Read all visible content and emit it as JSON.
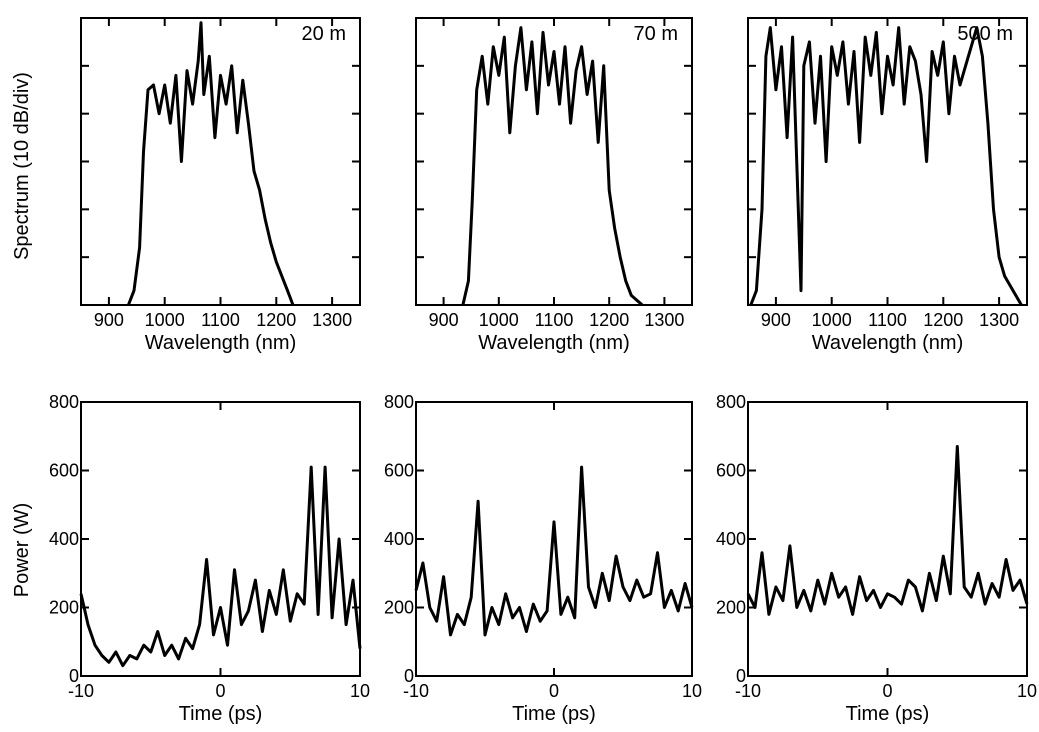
{
  "figure": {
    "top_ylabel": "Spectrum (10 dB/div)",
    "bottom_ylabel": "Power (W)"
  },
  "chart_data": [
    {
      "type": "line",
      "panel": "spectrum-20m",
      "annotation": "20 m",
      "xlabel": "Wavelength (nm)",
      "ylabel": "Spectrum (10 dB/div)",
      "xlim": [
        850,
        1350
      ],
      "ylim": [
        -60,
        0
      ],
      "x_ticks": [
        900,
        1000,
        1100,
        1200,
        1300
      ],
      "series": [
        {
          "x": [
            935,
            945,
            955,
            962,
            970,
            980,
            990,
            1000,
            1010,
            1020,
            1030,
            1040,
            1050,
            1060,
            1065,
            1070,
            1080,
            1090,
            1100,
            1110,
            1120,
            1130,
            1140,
            1150,
            1160,
            1170,
            1180,
            1190,
            1200,
            1210,
            1220,
            1230
          ],
          "y": [
            -60,
            -57,
            -48,
            -28,
            -15,
            -14,
            -20,
            -14,
            -22,
            -12,
            -30,
            -11,
            -18,
            -9,
            -1,
            -16,
            -8,
            -25,
            -12,
            -18,
            -10,
            -24,
            -13,
            -22,
            -32,
            -36,
            -42,
            -47,
            -51,
            -54,
            -57,
            -60
          ]
        }
      ]
    },
    {
      "type": "line",
      "panel": "spectrum-70m",
      "annotation": "70 m",
      "xlabel": "Wavelength (nm)",
      "ylabel": "",
      "xlim": [
        850,
        1350
      ],
      "ylim": [
        -60,
        0
      ],
      "x_ticks": [
        900,
        1000,
        1100,
        1200,
        1300
      ],
      "series": [
        {
          "x": [
            935,
            945,
            952,
            960,
            970,
            980,
            990,
            1000,
            1010,
            1020,
            1030,
            1040,
            1050,
            1060,
            1070,
            1080,
            1090,
            1100,
            1110,
            1120,
            1130,
            1140,
            1150,
            1160,
            1170,
            1180,
            1190,
            1200,
            1210,
            1220,
            1230,
            1240,
            1250,
            1260
          ],
          "y": [
            -60,
            -55,
            -38,
            -15,
            -8,
            -18,
            -6,
            -12,
            -4,
            -24,
            -10,
            -2,
            -15,
            -5,
            -20,
            -3,
            -14,
            -7,
            -18,
            -6,
            -22,
            -11,
            -6,
            -16,
            -9,
            -26,
            -10,
            -36,
            -44,
            -50,
            -55,
            -58,
            -59,
            -60
          ]
        }
      ]
    },
    {
      "type": "line",
      "panel": "spectrum-500m",
      "annotation": "500 m",
      "xlabel": "Wavelength (nm)",
      "ylabel": "",
      "xlim": [
        850,
        1350
      ],
      "ylim": [
        -60,
        0
      ],
      "x_ticks": [
        900,
        1000,
        1100,
        1200,
        1300
      ],
      "series": [
        {
          "x": [
            855,
            865,
            875,
            882,
            890,
            900,
            910,
            920,
            930,
            945,
            950,
            960,
            970,
            980,
            990,
            1000,
            1010,
            1020,
            1030,
            1040,
            1050,
            1060,
            1070,
            1080,
            1090,
            1100,
            1110,
            1120,
            1130,
            1140,
            1150,
            1160,
            1170,
            1180,
            1190,
            1200,
            1210,
            1220,
            1230,
            1240,
            1250,
            1260,
            1270,
            1280,
            1290,
            1300,
            1310,
            1320,
            1330,
            1340
          ],
          "y": [
            -60,
            -57,
            -40,
            -8,
            -2,
            -15,
            -6,
            -25,
            -4,
            -57,
            -10,
            -5,
            -22,
            -8,
            -30,
            -6,
            -12,
            -5,
            -18,
            -7,
            -26,
            -4,
            -12,
            -3,
            -20,
            -8,
            -14,
            -2,
            -18,
            -6,
            -9,
            -16,
            -30,
            -7,
            -12,
            -5,
            -20,
            -8,
            -14,
            -10,
            -6,
            -2,
            -8,
            -22,
            -40,
            -50,
            -54,
            -56,
            -58,
            -60
          ]
        }
      ]
    },
    {
      "type": "line",
      "panel": "power-20m",
      "xlabel": "Time (ps)",
      "ylabel": "Power (W)",
      "xlim": [
        -10,
        10
      ],
      "ylim": [
        0,
        800
      ],
      "x_ticks": [
        -10,
        0,
        10
      ],
      "y_ticks": [
        0,
        200,
        400,
        600,
        800
      ],
      "series": [
        {
          "x": [
            -10,
            -9.5,
            -9,
            -8.5,
            -8,
            -7.5,
            -7,
            -6.5,
            -6,
            -5.5,
            -5,
            -4.5,
            -4,
            -3.5,
            -3,
            -2.5,
            -2,
            -1.5,
            -1,
            -0.5,
            0,
            0.5,
            1,
            1.5,
            2,
            2.5,
            3,
            3.5,
            4,
            4.5,
            5,
            5.5,
            6,
            6.5,
            7,
            7.5,
            8,
            8.5,
            9,
            9.5,
            10
          ],
          "y": [
            240,
            150,
            90,
            60,
            40,
            70,
            30,
            60,
            50,
            90,
            70,
            130,
            60,
            90,
            50,
            110,
            80,
            150,
            340,
            120,
            200,
            90,
            310,
            150,
            190,
            280,
            130,
            250,
            180,
            310,
            160,
            240,
            210,
            610,
            180,
            610,
            170,
            400,
            150,
            280,
            80
          ]
        }
      ]
    },
    {
      "type": "line",
      "panel": "power-70m",
      "xlabel": "Time (ps)",
      "ylabel": "",
      "xlim": [
        -10,
        10
      ],
      "ylim": [
        0,
        800
      ],
      "x_ticks": [
        -10,
        0,
        10
      ],
      "y_ticks": [
        0,
        200,
        400,
        600,
        800
      ],
      "series": [
        {
          "x": [
            -10,
            -9.5,
            -9,
            -8.5,
            -8,
            -7.5,
            -7,
            -6.5,
            -6,
            -5.5,
            -5,
            -4.5,
            -4,
            -3.5,
            -3,
            -2.5,
            -2,
            -1.5,
            -1,
            -0.5,
            0,
            0.5,
            1,
            1.5,
            2,
            2.5,
            3,
            3.5,
            4,
            4.5,
            5,
            5.5,
            6,
            6.5,
            7,
            7.5,
            8,
            8.5,
            9,
            9.5,
            10
          ],
          "y": [
            250,
            330,
            200,
            160,
            290,
            120,
            180,
            150,
            230,
            510,
            120,
            200,
            150,
            240,
            170,
            200,
            130,
            210,
            160,
            190,
            450,
            180,
            230,
            170,
            610,
            260,
            200,
            300,
            220,
            350,
            260,
            220,
            280,
            230,
            240,
            360,
            200,
            250,
            190,
            270,
            200
          ]
        }
      ]
    },
    {
      "type": "line",
      "panel": "power-500m",
      "xlabel": "Time (ps)",
      "ylabel": "",
      "xlim": [
        -10,
        10
      ],
      "ylim": [
        0,
        800
      ],
      "x_ticks": [
        -10,
        0,
        10
      ],
      "y_ticks": [
        0,
        200,
        400,
        600,
        800
      ],
      "series": [
        {
          "x": [
            -10,
            -9.5,
            -9,
            -8.5,
            -8,
            -7.5,
            -7,
            -6.5,
            -6,
            -5.5,
            -5,
            -4.5,
            -4,
            -3.5,
            -3,
            -2.5,
            -2,
            -1.5,
            -1,
            -0.5,
            0,
            0.5,
            1,
            1.5,
            2,
            2.5,
            3,
            3.5,
            4,
            4.5,
            5,
            5.5,
            6,
            6.5,
            7,
            7.5,
            8,
            8.5,
            9,
            9.5,
            10
          ],
          "y": [
            240,
            200,
            360,
            180,
            260,
            220,
            380,
            200,
            250,
            190,
            280,
            210,
            300,
            230,
            260,
            180,
            290,
            220,
            250,
            200,
            240,
            230,
            210,
            280,
            260,
            190,
            300,
            220,
            350,
            240,
            670,
            260,
            230,
            300,
            210,
            270,
            230,
            340,
            250,
            280,
            210
          ]
        }
      ]
    }
  ]
}
